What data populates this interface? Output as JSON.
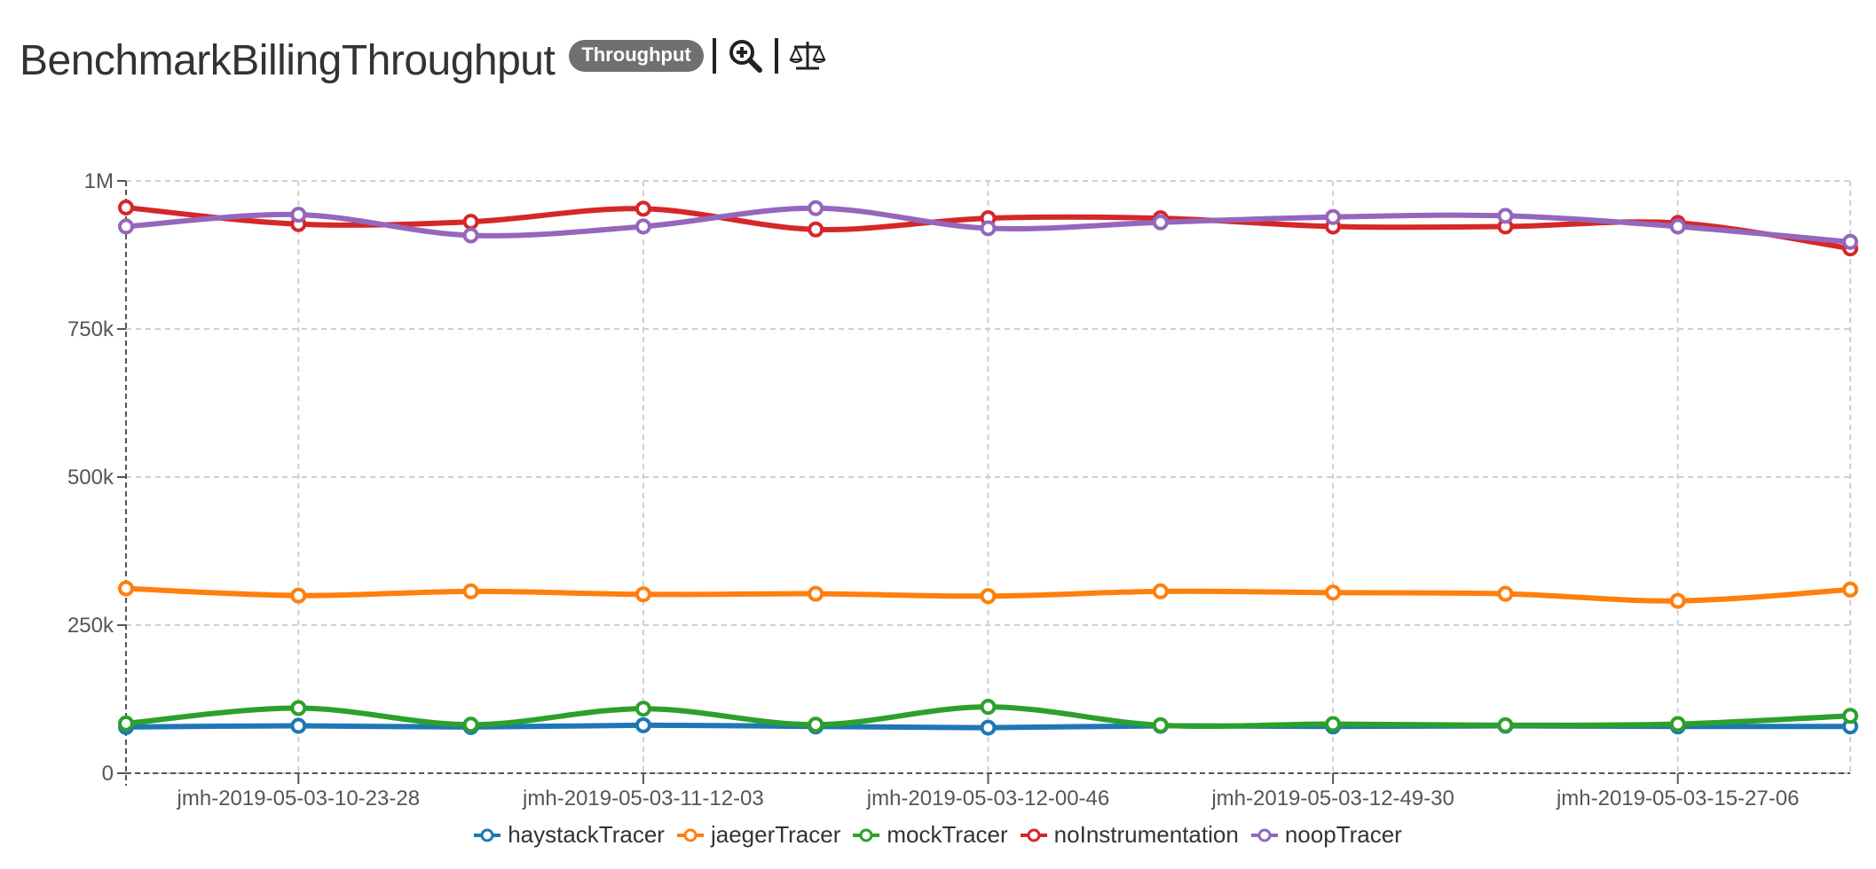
{
  "header": {
    "title": "BenchmarkBillingThroughput",
    "badge": "Throughput",
    "icons": [
      "zoom-in-icon",
      "balance-scale-icon"
    ]
  },
  "colors": {
    "haystackTracer": "#1f77b4",
    "jaegerTracer": "#ff7f0e",
    "mockTracer": "#2ca02c",
    "noInstrumentation": "#d62728",
    "noopTracer": "#9467bd"
  },
  "chart_data": {
    "type": "line",
    "title": "BenchmarkBillingThroughput",
    "xlabel": "",
    "ylabel": "",
    "ylim": [
      0,
      1000000
    ],
    "yticks": [
      0,
      250000,
      500000,
      750000,
      1000000
    ],
    "ytick_labels": [
      "0",
      "250k",
      "500k",
      "750k",
      "1M"
    ],
    "x_count": 11,
    "xtick_labels": [
      {
        "index": 1,
        "label": "jmh-2019-05-03-10-23-28"
      },
      {
        "index": 3,
        "label": "jmh-2019-05-03-11-12-03"
      },
      {
        "index": 5,
        "label": "jmh-2019-05-03-12-00-46"
      },
      {
        "index": 7,
        "label": "jmh-2019-05-03-12-49-30"
      },
      {
        "index": 9,
        "label": "jmh-2019-05-03-15-27-06"
      }
    ],
    "grid": true,
    "legend": "bottom-center",
    "series": [
      {
        "name": "haystackTracer",
        "values": [
          78000,
          80000,
          78000,
          81000,
          79000,
          77000,
          80000,
          79000,
          80000,
          79000,
          79000
        ]
      },
      {
        "name": "jaegerTracer",
        "values": [
          312000,
          300000,
          307000,
          302000,
          303000,
          299000,
          307000,
          305000,
          303000,
          291000,
          310000
        ]
      },
      {
        "name": "mockTracer",
        "values": [
          84000,
          110000,
          82000,
          109000,
          82000,
          112000,
          81000,
          83000,
          81000,
          83000,
          97000
        ]
      },
      {
        "name": "noInstrumentation",
        "values": [
          955000,
          927000,
          931000,
          953000,
          918000,
          937000,
          937000,
          923000,
          923000,
          929000,
          886000
        ]
      },
      {
        "name": "noopTracer",
        "values": [
          923000,
          943000,
          908000,
          923000,
          954000,
          920000,
          930000,
          939000,
          941000,
          923000,
          897000
        ]
      }
    ]
  }
}
